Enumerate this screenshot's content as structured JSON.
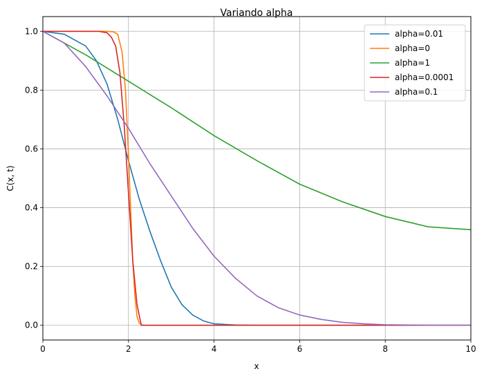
{
  "chart_data": {
    "type": "line",
    "title": "Variando alpha",
    "xlabel": "x",
    "ylabel": "C(x, t)",
    "xlim": [
      0,
      10
    ],
    "ylim": [
      -0.05,
      1.05
    ],
    "xticks": [
      0,
      2,
      4,
      6,
      8,
      10
    ],
    "yticks": [
      0.0,
      0.2,
      0.4,
      0.6,
      0.8,
      1.0
    ],
    "grid": true,
    "legend_position": "top-right",
    "series": [
      {
        "name": "alpha=0.01",
        "color": "#1f77b4",
        "x": [
          0,
          0.5,
          1.0,
          1.25,
          1.5,
          1.75,
          2.0,
          2.25,
          2.5,
          2.75,
          3.0,
          3.25,
          3.5,
          3.75,
          4.0,
          4.5,
          5.0,
          6.0,
          8.0,
          10.0
        ],
        "y": [
          1.0,
          0.99,
          0.95,
          0.9,
          0.82,
          0.7,
          0.56,
          0.43,
          0.32,
          0.22,
          0.13,
          0.07,
          0.035,
          0.015,
          0.005,
          0.001,
          0.0,
          0.0,
          0.0,
          0.0
        ]
      },
      {
        "name": "alpha=0",
        "color": "#ff7f0e",
        "x": [
          0,
          1.5,
          1.65,
          1.75,
          1.85,
          1.93,
          2.0,
          2.05,
          2.1,
          2.15,
          2.2,
          2.25,
          2.3,
          2.35,
          4.0,
          6.0,
          8.0,
          10.0
        ],
        "y": [
          1.0,
          1.0,
          0.998,
          0.99,
          0.93,
          0.8,
          0.58,
          0.4,
          0.22,
          0.1,
          0.03,
          0.008,
          0.002,
          0.0,
          0.0,
          0.0,
          0.0,
          0.0
        ]
      },
      {
        "name": "alpha=1",
        "color": "#2ca02c",
        "x": [
          0,
          1,
          2,
          3,
          4,
          5,
          6,
          7,
          8,
          9,
          10
        ],
        "y": [
          1.0,
          0.92,
          0.83,
          0.74,
          0.645,
          0.56,
          0.48,
          0.42,
          0.37,
          0.335,
          0.325
        ]
      },
      {
        "name": "alpha=0.0001",
        "color": "#d62728",
        "x": [
          0,
          1.3,
          1.5,
          1.6,
          1.7,
          1.8,
          1.9,
          2.0,
          2.1,
          2.2,
          2.3,
          4.0,
          6.0,
          8.0,
          10.0
        ],
        "y": [
          1.0,
          1.0,
          0.995,
          0.98,
          0.95,
          0.86,
          0.68,
          0.45,
          0.22,
          0.07,
          0.0,
          0.0,
          0.0,
          0.0,
          0.0
        ]
      },
      {
        "name": "alpha=0.1",
        "color": "#9467bd",
        "x": [
          0,
          0.5,
          1.0,
          1.5,
          2.0,
          2.5,
          3.0,
          3.5,
          4.0,
          4.5,
          5.0,
          5.5,
          6.0,
          6.5,
          7.0,
          7.5,
          8.0,
          9.0,
          10.0
        ],
        "y": [
          1.0,
          0.96,
          0.88,
          0.78,
          0.67,
          0.55,
          0.44,
          0.33,
          0.235,
          0.16,
          0.1,
          0.06,
          0.035,
          0.02,
          0.01,
          0.005,
          0.002,
          0.0,
          0.0
        ]
      }
    ]
  }
}
